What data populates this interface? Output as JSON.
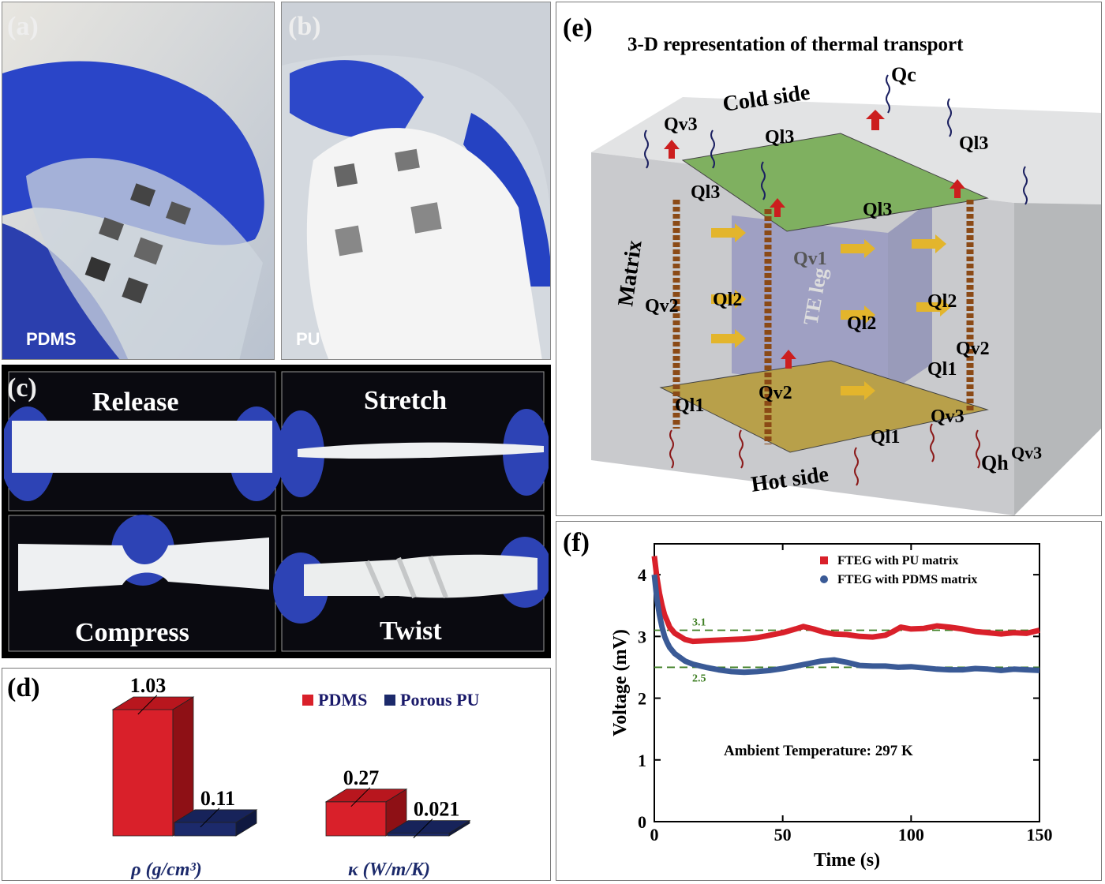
{
  "panel_a": {
    "label": "(a)",
    "caption": "PDMS"
  },
  "panel_b": {
    "label": "(b)",
    "caption": "PU"
  },
  "panel_c": {
    "label": "(c)",
    "captions": [
      "Release",
      "Stretch",
      "Compress",
      "Twist"
    ]
  },
  "panel_d": {
    "label": "(d)",
    "legend": [
      {
        "name": "PDMS",
        "color": "#d9202a"
      },
      {
        "name": "Porous PU",
        "color": "#1c2a6b"
      }
    ],
    "chart_data": {
      "type": "bar",
      "categories": [
        "ρ (g/cm³)",
        "κ (W/m/K)"
      ],
      "series": [
        {
          "name": "PDMS",
          "values": [
            1.03,
            0.27
          ]
        },
        {
          "name": "Porous PU",
          "values": [
            0.11,
            0.021
          ]
        }
      ],
      "value_labels": [
        [
          "1.03",
          "0.27"
        ],
        [
          "0.11",
          "0.021"
        ]
      ]
    }
  },
  "panel_e": {
    "label": "(e)",
    "title": "3-D representation of thermal transport",
    "labels": {
      "cold_side": "Cold side",
      "hot_side": "Hot side",
      "matrix": "Matrix",
      "te_leg": "TE leg",
      "qc": "Qc",
      "qh": "Qh",
      "qv1": "Qv1",
      "qv2": "Qv2",
      "qv3": "Qv3",
      "ql1": "Ql1",
      "ql2": "Ql2",
      "ql3": "Ql3"
    }
  },
  "panel_f": {
    "label": "(f)",
    "annotation": "Ambient Temperature: 297 K",
    "chart_data": {
      "type": "line",
      "xlabel": "Time (s)",
      "ylabel": "Voltage (mV)",
      "xlim": [
        0,
        150
      ],
      "ylim": [
        0,
        4.5
      ],
      "xticks": [
        0,
        50,
        100,
        150
      ],
      "yticks": [
        0,
        1,
        2,
        3,
        4
      ],
      "reference_lines": [
        {
          "y": 3.1,
          "label": "3.1"
        },
        {
          "y": 2.5,
          "label": "2.5"
        }
      ],
      "series": [
        {
          "name": "FTEG with PU matrix",
          "color": "#d9202a",
          "x": [
            0,
            1,
            2,
            3,
            4,
            5,
            6,
            8,
            10,
            12,
            15,
            20,
            25,
            30,
            35,
            40,
            45,
            50,
            55,
            58,
            62,
            66,
            70,
            75,
            80,
            85,
            90,
            93,
            96,
            100,
            105,
            110,
            115,
            120,
            125,
            130,
            135,
            140,
            145,
            150
          ],
          "y": [
            4.3,
            3.95,
            3.7,
            3.5,
            3.35,
            3.25,
            3.15,
            3.05,
            3.0,
            2.95,
            2.92,
            2.93,
            2.94,
            2.95,
            2.96,
            2.98,
            3.02,
            3.06,
            3.12,
            3.16,
            3.12,
            3.07,
            3.04,
            3.03,
            3.0,
            2.99,
            3.02,
            3.08,
            3.15,
            3.12,
            3.13,
            3.17,
            3.15,
            3.12,
            3.08,
            3.06,
            3.04,
            3.06,
            3.05,
            3.1
          ]
        },
        {
          "name": "FTEG with PDMS matrix",
          "color": "#3a5a96",
          "x": [
            0,
            1,
            2,
            3,
            4,
            5,
            6,
            8,
            10,
            12,
            15,
            20,
            25,
            30,
            35,
            40,
            45,
            50,
            55,
            60,
            65,
            70,
            75,
            80,
            85,
            90,
            95,
            100,
            105,
            110,
            115,
            120,
            125,
            130,
            135,
            140,
            145,
            150
          ],
          "y": [
            4.0,
            3.6,
            3.35,
            3.15,
            3.0,
            2.9,
            2.82,
            2.72,
            2.66,
            2.6,
            2.55,
            2.5,
            2.46,
            2.43,
            2.42,
            2.43,
            2.45,
            2.48,
            2.52,
            2.56,
            2.6,
            2.62,
            2.58,
            2.53,
            2.52,
            2.52,
            2.5,
            2.51,
            2.49,
            2.47,
            2.46,
            2.46,
            2.48,
            2.47,
            2.45,
            2.47,
            2.46,
            2.45
          ]
        }
      ]
    }
  }
}
